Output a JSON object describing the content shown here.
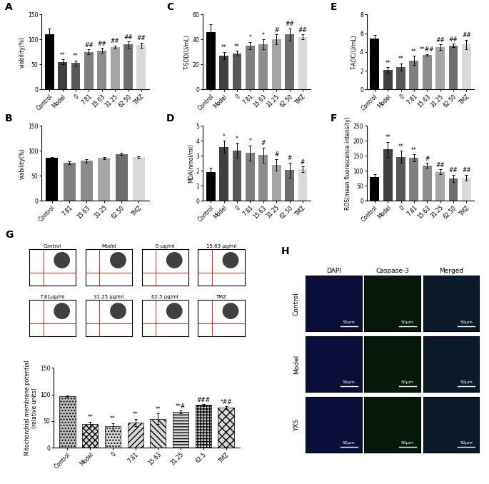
{
  "chart_data": [
    {
      "type": "bar",
      "panel_label": "A",
      "y_label": "viability(%)",
      "categories": [
        "Control",
        "Model",
        "0",
        "7.81",
        "15.63",
        "31.25",
        "62.50",
        "TMZ"
      ],
      "values": [
        111,
        55,
        53,
        75,
        78,
        85,
        90,
        89
      ],
      "errors": [
        11,
        5,
        5,
        5,
        5,
        3,
        6,
        5
      ],
      "annotations": [
        null,
        "**",
        "**",
        "##",
        "##",
        "##",
        "##",
        "##"
      ],
      "colors": [
        "#000000",
        "#404040",
        "#595959",
        "#7f7f7f",
        "#8c8c8c",
        "#a6a6a6",
        "#6e6e6e",
        "#d9d9d9"
      ],
      "ylim": [
        0,
        150
      ],
      "yticks": [
        0,
        50,
        100,
        150
      ]
    },
    {
      "type": "bar",
      "panel_label": "B",
      "y_label": "viability(%)",
      "categories": [
        "Control",
        "7.81",
        "15.63",
        "31.25",
        "62.50",
        "TMZ"
      ],
      "values": [
        86,
        76,
        80,
        86,
        94,
        87
      ],
      "errors": [
        2,
        3,
        4,
        2,
        2,
        2
      ],
      "colors": [
        "#000000",
        "#7f7f7f",
        "#8c8c8c",
        "#a6a6a6",
        "#6e6e6e",
        "#d9d9d9"
      ],
      "ylim": [
        0,
        150
      ],
      "yticks": [
        0,
        50,
        100,
        150
      ]
    },
    {
      "type": "bar",
      "panel_label": "C",
      "y_label": "T-SOD(U/mL)",
      "categories": [
        "Control",
        "Model",
        "0",
        "7.81",
        "15.63",
        "31.25",
        "62.50",
        "TMZ"
      ],
      "values": [
        46,
        27,
        29,
        35,
        36,
        40,
        44,
        42
      ],
      "errors": [
        6,
        3,
        2,
        3,
        4,
        4,
        5,
        2
      ],
      "annotations": [
        null,
        "**",
        "**",
        "*",
        "*",
        "#",
        "##",
        "##"
      ],
      "colors": [
        "#000000",
        "#404040",
        "#595959",
        "#7f7f7f",
        "#8c8c8c",
        "#a6a6a6",
        "#6e6e6e",
        "#d9d9d9"
      ],
      "ylim": [
        0,
        60
      ],
      "yticks": [
        0,
        20,
        40,
        60
      ]
    },
    {
      "type": "bar",
      "panel_label": "D",
      "y_label": "MDA(nmol/ml)",
      "categories": [
        "Control",
        "Model",
        "0",
        "7.81",
        "15.63",
        "31.25",
        "62.50",
        "TMZ"
      ],
      "values": [
        1.9,
        3.6,
        3.35,
        3.2,
        3.05,
        2.4,
        2.05,
        2.1
      ],
      "errors": [
        0.3,
        0.4,
        0.5,
        0.5,
        0.5,
        0.4,
        0.5,
        0.2
      ],
      "annotations": [
        null,
        "*",
        "*",
        "*",
        "#",
        "#",
        "#",
        "#"
      ],
      "colors": [
        "#000000",
        "#404040",
        "#595959",
        "#7f7f7f",
        "#8c8c8c",
        "#a6a6a6",
        "#6e6e6e",
        "#d9d9d9"
      ],
      "ylim": [
        0,
        5
      ],
      "yticks": [
        0,
        1,
        2,
        3,
        4,
        5
      ]
    },
    {
      "type": "bar",
      "panel_label": "E",
      "y_label": "T-AOC(U/mL)",
      "categories": [
        "Control",
        "Model",
        "0",
        "7.81",
        "15.63",
        "31.25",
        "62.50",
        "TMZ"
      ],
      "values": [
        5.4,
        2.1,
        2.4,
        3.1,
        3.7,
        4.5,
        4.7,
        4.8
      ],
      "errors": [
        0.4,
        0.3,
        0.4,
        0.5,
        0.1,
        0.3,
        0.2,
        0.5
      ],
      "annotations": [
        null,
        "**",
        "**",
        "**",
        "**##",
        "##",
        "##",
        "##"
      ],
      "colors": [
        "#000000",
        "#404040",
        "#595959",
        "#7f7f7f",
        "#8c8c8c",
        "#a6a6a6",
        "#6e6e6e",
        "#d9d9d9"
      ],
      "ylim": [
        0,
        8
      ],
      "yticks": [
        0,
        2,
        4,
        6,
        8
      ]
    },
    {
      "type": "bar",
      "panel_label": "F",
      "y_label": "ROS(mean fluorescence intensity)",
      "categories": [
        "Control",
        "Model",
        "0",
        "7.81",
        "15.63",
        "31.25",
        "62.50",
        "TMZ"
      ],
      "values": [
        80,
        172,
        147,
        143,
        118,
        97,
        75,
        77
      ],
      "errors": [
        8,
        25,
        20,
        12,
        8,
        8,
        12,
        10
      ],
      "annotations": [
        null,
        "**",
        "**",
        "**",
        "#",
        "##",
        "##",
        "##"
      ],
      "colors": [
        "#000000",
        "#404040",
        "#595959",
        "#7f7f7f",
        "#8c8c8c",
        "#a6a6a6",
        "#6e6e6e",
        "#d9d9d9"
      ],
      "ylim": [
        0,
        250
      ],
      "yticks": [
        0,
        50,
        100,
        150,
        200,
        250
      ]
    },
    {
      "type": "bar",
      "y_label": "Mitochondrial membrane potential\n(relative units)",
      "categories": [
        "Control",
        "Model",
        "0",
        "7.81",
        "15.63",
        "31.25",
        "62.5",
        "TMZ"
      ],
      "values": [
        97,
        44,
        40,
        47,
        54,
        67,
        80,
        75
      ],
      "errors": [
        1,
        5,
        6,
        7,
        10,
        3,
        2,
        3
      ],
      "annotations": [
        null,
        "**",
        "**",
        "**",
        "**",
        "**#",
        "###",
        "*##"
      ],
      "colors": [
        "#bdbdbd",
        "#d9d9d9",
        "#d9d9d9",
        "#d9d9d9",
        "#d9d9d9",
        "#d9d9d9",
        "#d9d9d9",
        "#d9d9d9"
      ],
      "ylim": [
        0,
        150
      ],
      "yticks": [
        0,
        50,
        100,
        150
      ]
    }
  ],
  "flow_cytometry": {
    "panel_label": "G",
    "plots": [
      "Control",
      "Model",
      "0 μg/ml",
      "15.63 μg/ml",
      "7.81μg/ml",
      "31.25 μg/ml",
      "62.5 μg/ml",
      "TMZ"
    ]
  },
  "immunofluorescence": {
    "panel_label": "H",
    "columns": [
      "DAPI",
      "Caspase-3",
      "Merged"
    ],
    "rows": [
      "Control",
      "Model",
      "YXS"
    ],
    "scale_bar": "50μm"
  }
}
